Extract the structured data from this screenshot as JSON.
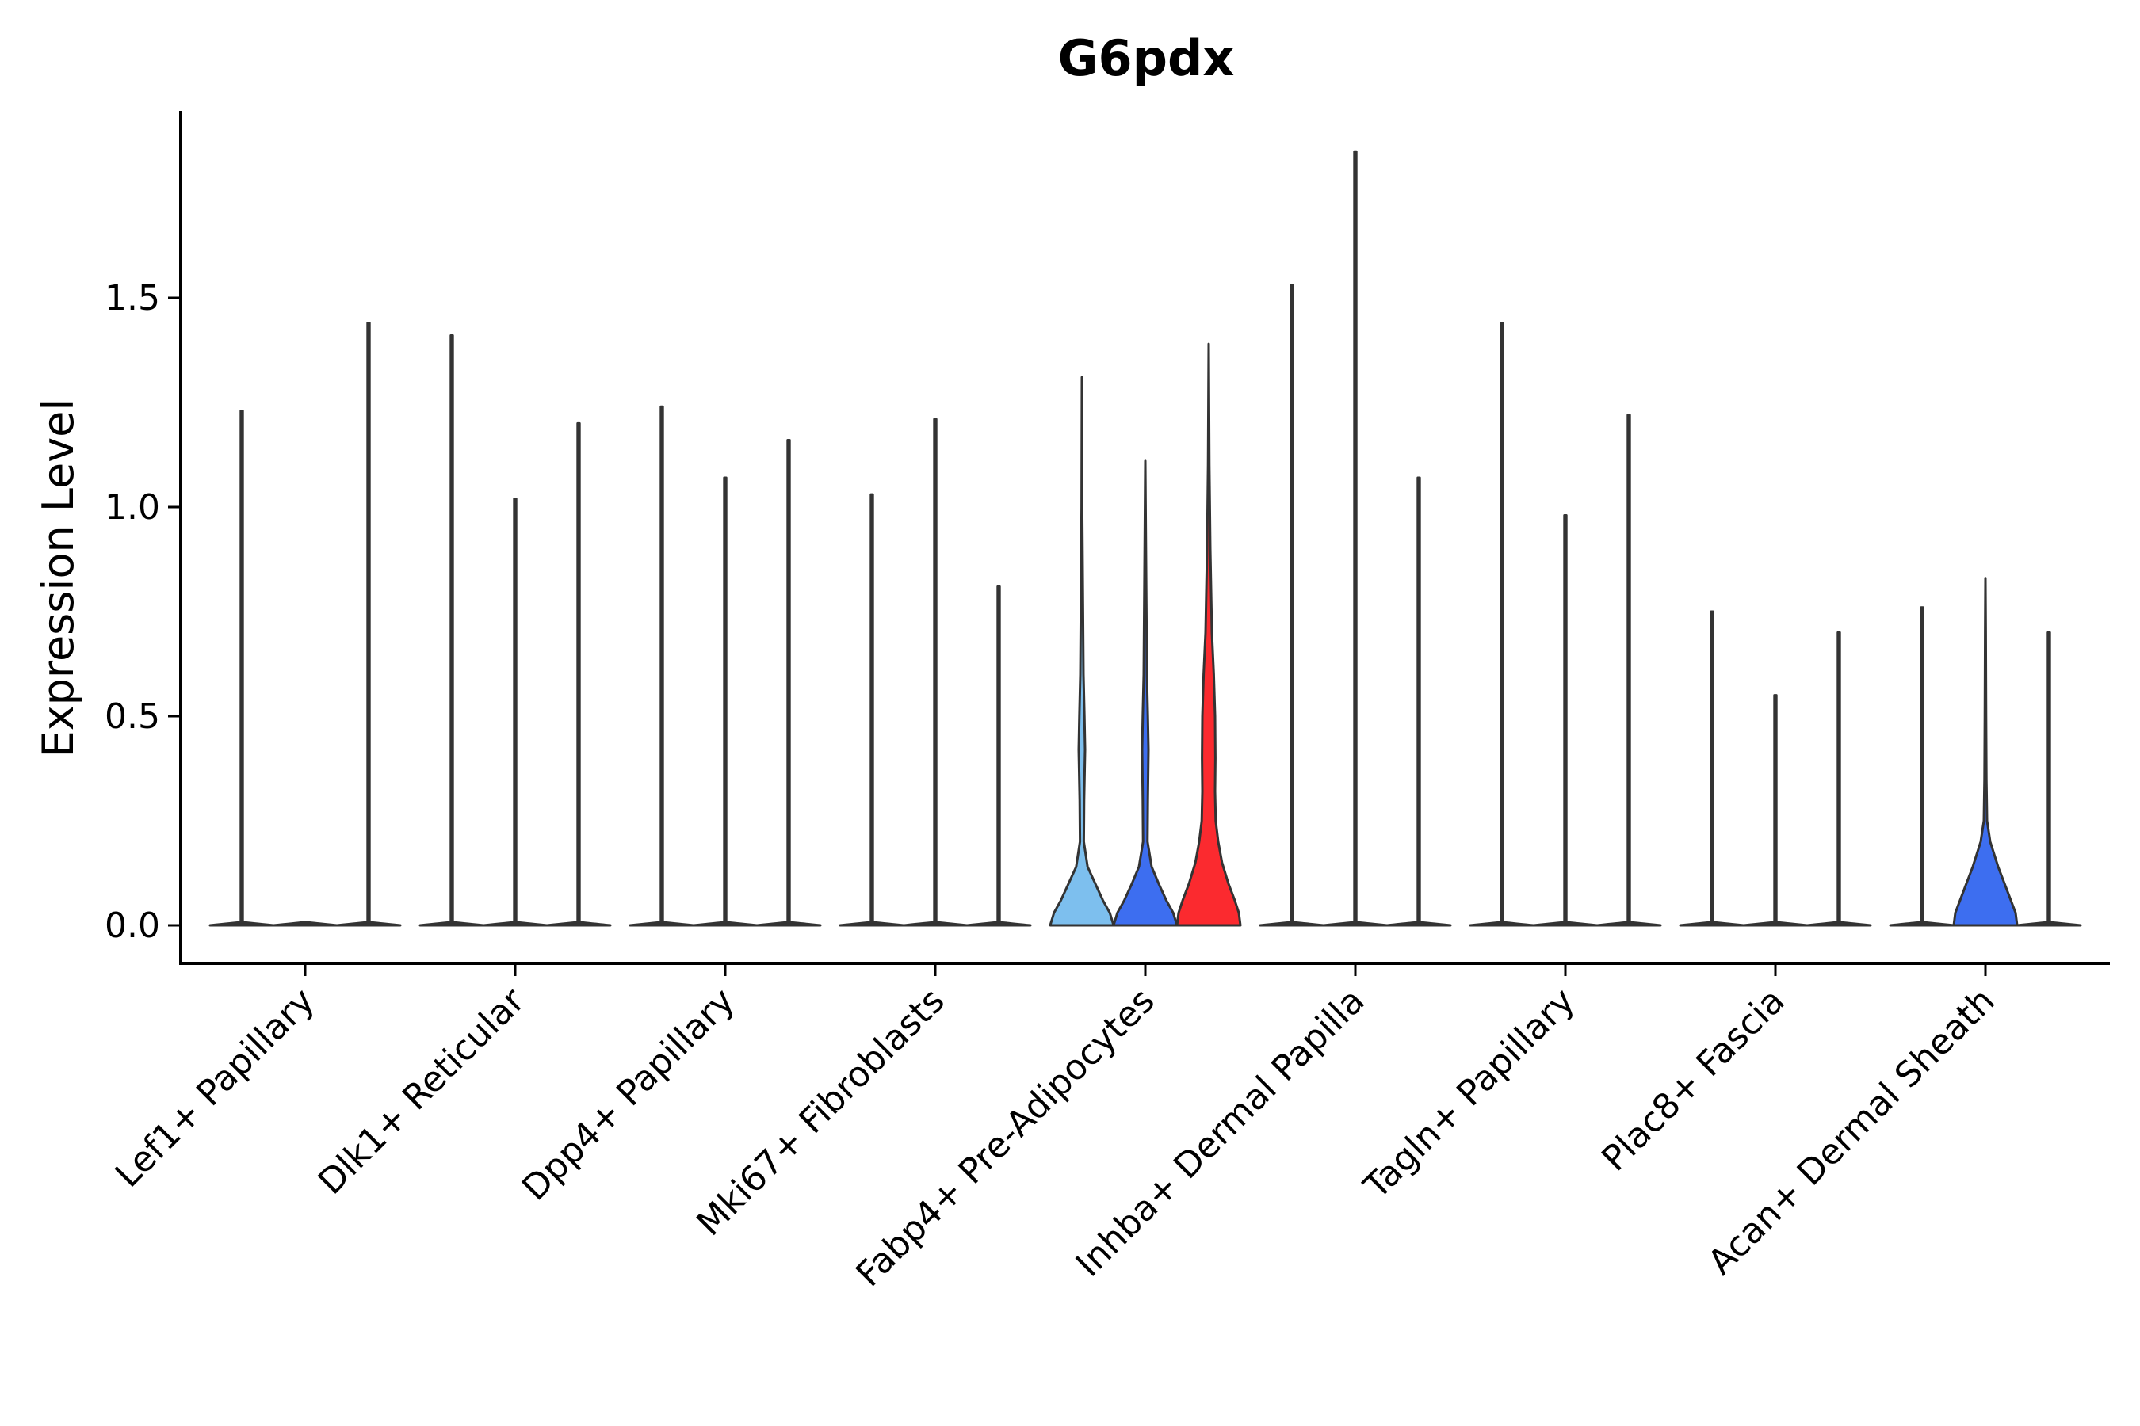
{
  "chart_data": {
    "type": "violin",
    "title": "G6pdx",
    "xlabel": "",
    "ylabel": "Expression Level",
    "ylim": [
      -0.09,
      1.95
    ],
    "yticks": [
      0.0,
      0.5,
      1.0,
      1.5
    ],
    "ytick_labels": [
      "0.0",
      "0.5",
      "1.0",
      "1.5"
    ],
    "grid": false,
    "legend": "none",
    "groups_per_category": 3,
    "colors": {
      "light_blue": "#7dbfee",
      "blue": "#3d6ef0",
      "red": "#fb2a2f",
      "outline": "#333333"
    },
    "categories": [
      {
        "label": "Lef1+ Papillary",
        "violins": [
          {
            "max": 1.23,
            "color": "light_blue",
            "profile": []
          },
          {
            "max": 0.0,
            "color": "blue",
            "profile": []
          },
          {
            "max": 1.44,
            "color": "red",
            "profile": []
          }
        ]
      },
      {
        "label": "Dlk1+ Reticular",
        "violins": [
          {
            "max": 1.41,
            "color": "light_blue",
            "profile": []
          },
          {
            "max": 1.02,
            "color": "blue",
            "profile": []
          },
          {
            "max": 1.2,
            "color": "red",
            "profile": []
          }
        ]
      },
      {
        "label": "Dpp4+ Papillary",
        "violins": [
          {
            "max": 1.24,
            "color": "light_blue",
            "profile": []
          },
          {
            "max": 1.07,
            "color": "blue",
            "profile": []
          },
          {
            "max": 1.16,
            "color": "red",
            "profile": []
          }
        ]
      },
      {
        "label": "Mki67+ Fibroblasts",
        "violins": [
          {
            "max": 1.03,
            "color": "light_blue",
            "profile": []
          },
          {
            "max": 1.21,
            "color": "blue",
            "profile": []
          },
          {
            "max": 0.81,
            "color": "red",
            "profile": []
          }
        ]
      },
      {
        "label": "Fabp4+ Pre-Adipocytes",
        "violins": [
          {
            "max": 1.31,
            "color": "light_blue",
            "profile": [
              [
                0,
                1.0
              ],
              [
                0.03,
                0.88
              ],
              [
                0.06,
                0.66
              ],
              [
                0.1,
                0.42
              ],
              [
                0.14,
                0.18
              ],
              [
                0.2,
                0.06
              ],
              [
                0.3,
                0.07
              ],
              [
                0.42,
                0.1
              ],
              [
                0.5,
                0.08
              ],
              [
                0.6,
                0.05
              ],
              [
                0.8,
                0.03
              ],
              [
                1.0,
                0.01
              ],
              [
                1.31,
                0
              ]
            ]
          },
          {
            "max": 1.11,
            "color": "blue",
            "profile": [
              [
                0,
                1.0
              ],
              [
                0.03,
                0.88
              ],
              [
                0.06,
                0.66
              ],
              [
                0.1,
                0.42
              ],
              [
                0.14,
                0.2
              ],
              [
                0.2,
                0.07
              ],
              [
                0.3,
                0.08
              ],
              [
                0.42,
                0.1
              ],
              [
                0.5,
                0.08
              ],
              [
                0.6,
                0.05
              ],
              [
                0.8,
                0.03
              ],
              [
                1.11,
                0
              ]
            ]
          },
          {
            "max": 1.39,
            "color": "red",
            "profile": [
              [
                0,
                1.0
              ],
              [
                0.03,
                0.95
              ],
              [
                0.06,
                0.82
              ],
              [
                0.1,
                0.62
              ],
              [
                0.15,
                0.42
              ],
              [
                0.2,
                0.3
              ],
              [
                0.25,
                0.22
              ],
              [
                0.32,
                0.2
              ],
              [
                0.4,
                0.21
              ],
              [
                0.5,
                0.2
              ],
              [
                0.6,
                0.16
              ],
              [
                0.7,
                0.1
              ],
              [
                0.9,
                0.05
              ],
              [
                1.1,
                0.02
              ],
              [
                1.39,
                0
              ]
            ]
          }
        ]
      },
      {
        "label": "Inhba+ Dermal Papilla",
        "violins": [
          {
            "max": 1.53,
            "color": "light_blue",
            "profile": []
          },
          {
            "max": 1.85,
            "color": "blue",
            "profile": []
          },
          {
            "max": 1.07,
            "color": "red",
            "profile": []
          }
        ]
      },
      {
        "label": "Tagln+ Papillary",
        "violins": [
          {
            "max": 1.44,
            "color": "light_blue",
            "profile": []
          },
          {
            "max": 0.98,
            "color": "blue",
            "profile": []
          },
          {
            "max": 1.22,
            "color": "red",
            "profile": []
          }
        ]
      },
      {
        "label": "Plac8+ Fascia",
        "violins": [
          {
            "max": 0.75,
            "color": "light_blue",
            "profile": []
          },
          {
            "max": 0.55,
            "color": "blue",
            "profile": []
          },
          {
            "max": 0.7,
            "color": "red",
            "profile": []
          }
        ]
      },
      {
        "label": "Acan+ Dermal Sheath",
        "violins": [
          {
            "max": 0.76,
            "color": "light_blue",
            "profile": []
          },
          {
            "max": 0.83,
            "color": "blue",
            "profile": [
              [
                0,
                1.0
              ],
              [
                0.03,
                0.95
              ],
              [
                0.06,
                0.8
              ],
              [
                0.1,
                0.6
              ],
              [
                0.14,
                0.4
              ],
              [
                0.2,
                0.15
              ],
              [
                0.25,
                0.05
              ],
              [
                0.35,
                0.03
              ],
              [
                0.5,
                0.02
              ],
              [
                0.7,
                0.01
              ],
              [
                0.83,
                0
              ]
            ]
          },
          {
            "max": 0.7,
            "color": "red",
            "profile": []
          }
        ]
      }
    ]
  }
}
